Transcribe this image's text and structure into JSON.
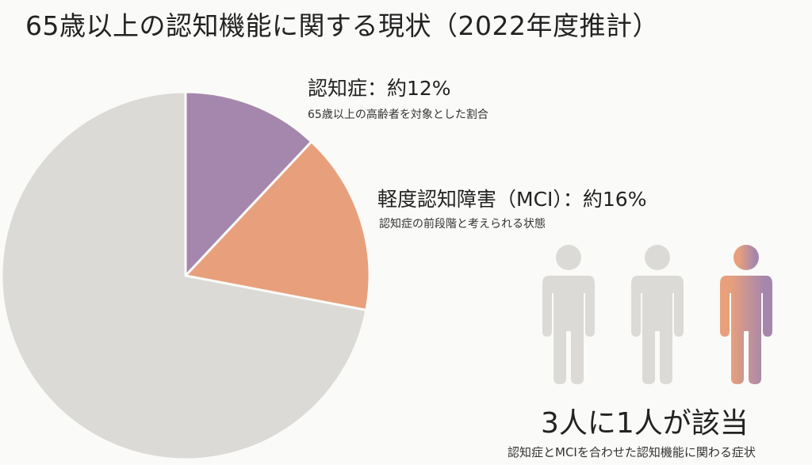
{
  "title": "65歳以上の認知機能に関する現状（2022年度推計）",
  "chart_data": {
    "type": "pie",
    "title": "65歳以上の認知機能に関する現状（2022年度推計）",
    "slices": [
      {
        "label": "認知症：約12%",
        "value": 12,
        "color": "#a587ad",
        "note": "65歳以上の高齢者を対象とした割合"
      },
      {
        "label": "軽度認知障害（MCI）：約16%",
        "value": 16,
        "color": "#e8a07c",
        "note": "認知症の前段階と考えられる状態"
      },
      {
        "label": "",
        "value": 72,
        "color": "#dcdad6"
      }
    ],
    "start": "12 o'clock",
    "direction": "clockwise"
  },
  "labels": {
    "dementia_main": "認知症：約12%",
    "dementia_sub": "65歳以上の高齢者を対象とした割合",
    "mci_main": "軽度認知障害（MCI）：約16%",
    "mci_sub": "認知症の前段階と考えられる状態"
  },
  "people": {
    "icon": "person-icon",
    "total": 3,
    "highlighted": 1,
    "colors": {
      "normal": "#dcdad6",
      "gradient_from": "#e8a07c",
      "gradient_to": "#a587ad"
    },
    "headline": "3人に1人が該当",
    "caption": "認知症とMCIを合わせた認知機能に関わる症状"
  }
}
